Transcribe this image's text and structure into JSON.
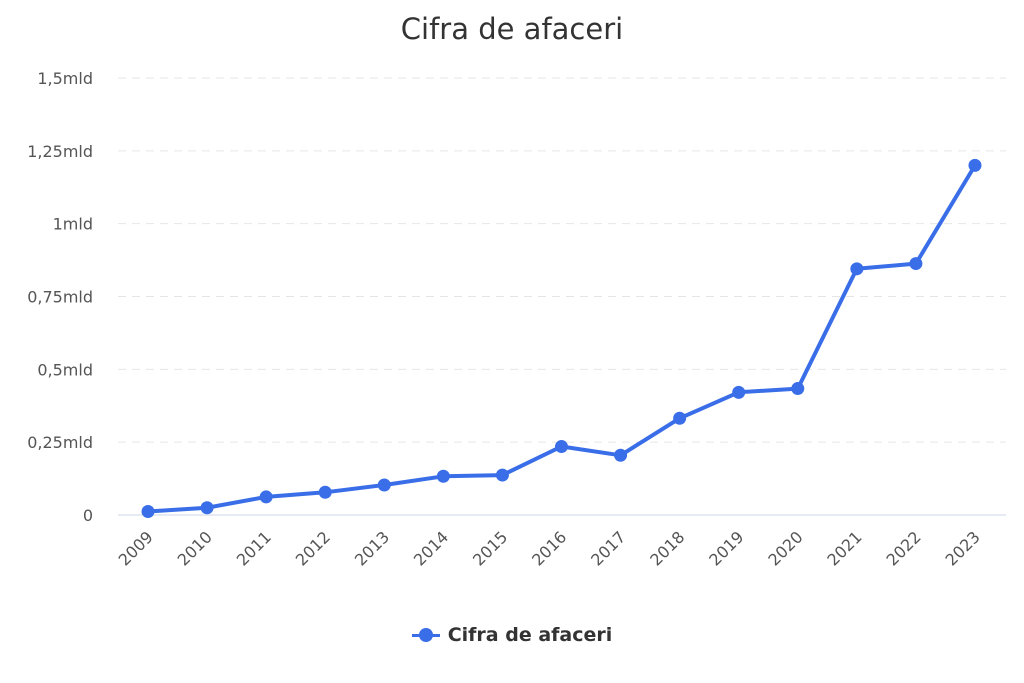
{
  "chart_data": {
    "type": "line",
    "title": "Cifra de afaceri",
    "categories": [
      "2009",
      "2010",
      "2011",
      "2012",
      "2013",
      "2014",
      "2015",
      "2016",
      "2017",
      "2018",
      "2019",
      "2020",
      "2021",
      "2022",
      "2023"
    ],
    "series": [
      {
        "name": "Cifra de afaceri",
        "values": [
          0.012,
          0.025,
          0.062,
          0.078,
          0.103,
          0.133,
          0.137,
          0.235,
          0.205,
          0.332,
          0.421,
          0.434,
          0.845,
          0.863,
          1.2
        ],
        "color": "#3a6ee8"
      }
    ],
    "ylim": [
      0,
      1.5
    ],
    "yticks": [
      {
        "value": 0,
        "label": "0"
      },
      {
        "value": 0.25,
        "label": "0,25mld"
      },
      {
        "value": 0.5,
        "label": "0,5mld"
      },
      {
        "value": 0.75,
        "label": "0,75mld"
      },
      {
        "value": 1.0,
        "label": "1mld"
      },
      {
        "value": 1.25,
        "label": "1,25mld"
      },
      {
        "value": 1.5,
        "label": "1,5mld"
      }
    ],
    "grid": true,
    "legend_position": "bottom"
  }
}
